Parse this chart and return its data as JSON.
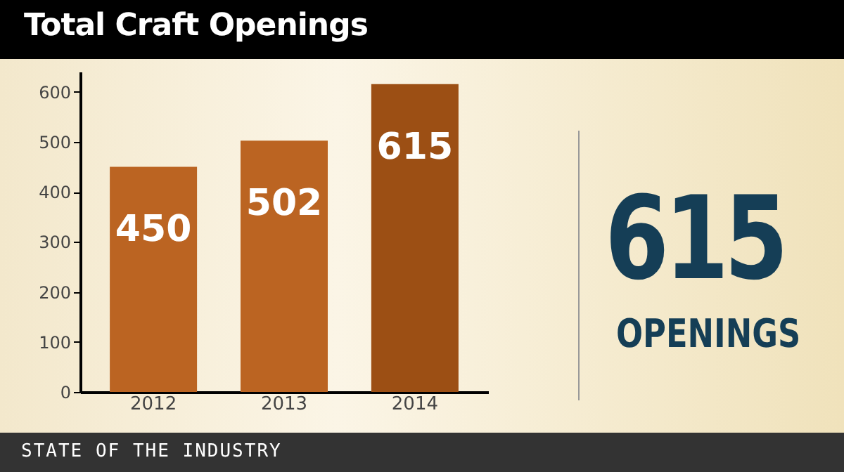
{
  "chart_data": {
    "type": "bar",
    "title": "Total Craft Openings",
    "categories": [
      "2012",
      "2013",
      "2014"
    ],
    "values": [
      450,
      502,
      615
    ],
    "colors": [
      "#bb6422",
      "#bb6422",
      "#9c4f14"
    ],
    "ylim": [
      0,
      640
    ],
    "yticks": [
      0,
      100,
      200,
      300,
      400,
      500,
      600
    ],
    "grid": false,
    "data_labels": true,
    "annotations": [
      "615",
      "OPENINGS",
      "STATE OF THE INDUSTRY"
    ]
  }
}
